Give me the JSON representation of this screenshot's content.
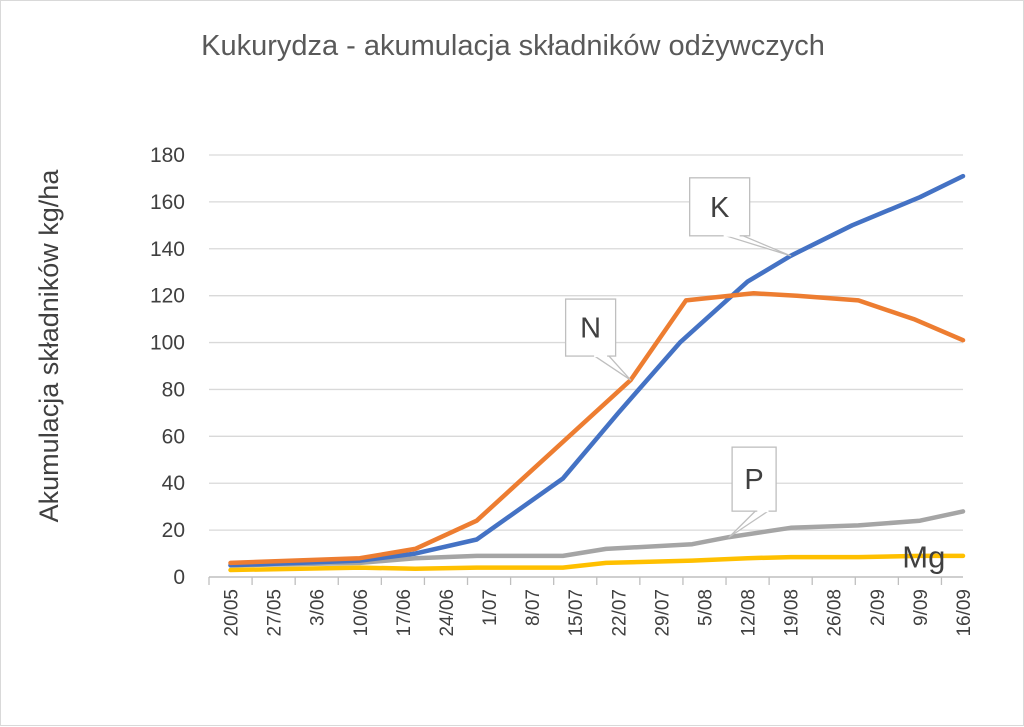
{
  "chart_data": {
    "type": "line",
    "title": "Kukurydza - akumulacja składników odżywczych",
    "ylabel": "Akumulacja składników kg/ha",
    "xlabel": "",
    "ylim": [
      0,
      180
    ],
    "yticks": [
      0,
      20,
      40,
      60,
      80,
      100,
      120,
      140,
      160,
      180
    ],
    "x_ticks": [
      "20/05",
      "27/05",
      "3/06",
      "10/06",
      "17/06",
      "24/06",
      "1/07",
      "8/07",
      "15/07",
      "22/07",
      "29/07",
      "5/08",
      "12/08",
      "19/08",
      "26/08",
      "2/09",
      "9/09",
      "16/09"
    ],
    "grid": "horizontal",
    "legend": "none",
    "series": [
      {
        "name": "N",
        "color": "#ED7D31",
        "points": [
          [
            "20/05",
            6
          ],
          [
            "10/06",
            8
          ],
          [
            "19/06",
            12
          ],
          [
            "29/06",
            24
          ],
          [
            "24/07",
            84
          ],
          [
            "2/08",
            118
          ],
          [
            "13/08",
            121
          ],
          [
            "20/08",
            120
          ],
          [
            "30/08",
            118
          ],
          [
            "8/09",
            110
          ],
          [
            "16/09",
            101
          ]
        ]
      },
      {
        "name": "K",
        "color": "#4472C4",
        "points": [
          [
            "20/05",
            5
          ],
          [
            "10/06",
            7
          ],
          [
            "19/06",
            10
          ],
          [
            "29/06",
            16
          ],
          [
            "13/07",
            42
          ],
          [
            "22/07",
            70
          ],
          [
            "1/08",
            100
          ],
          [
            "12/08",
            126
          ],
          [
            "19/08",
            137
          ],
          [
            "29/08",
            150
          ],
          [
            "9/09",
            162
          ],
          [
            "16/09",
            171
          ]
        ]
      },
      {
        "name": "P",
        "color": "#A5A5A5",
        "points": [
          [
            "20/05",
            5
          ],
          [
            "10/06",
            6
          ],
          [
            "19/06",
            8
          ],
          [
            "29/06",
            9
          ],
          [
            "13/07",
            9
          ],
          [
            "20/07",
            12
          ],
          [
            "3/08",
            14
          ],
          [
            "9/08",
            17
          ],
          [
            "19/08",
            21
          ],
          [
            "30/08",
            22
          ],
          [
            "9/09",
            24
          ],
          [
            "16/09",
            28
          ]
        ]
      },
      {
        "name": "Mg",
        "color": "#FFC000",
        "points": [
          [
            "20/05",
            3
          ],
          [
            "10/06",
            4
          ],
          [
            "19/06",
            3.5
          ],
          [
            "29/06",
            4
          ],
          [
            "13/07",
            4
          ],
          [
            "20/07",
            6
          ],
          [
            "3/08",
            7
          ],
          [
            "12/08",
            8
          ],
          [
            "19/08",
            8.5
          ],
          [
            "30/08",
            8.5
          ],
          [
            "9/09",
            9
          ],
          [
            "16/09",
            9
          ]
        ]
      }
    ],
    "annotations": [
      {
        "text": "K",
        "series": "K",
        "at": "19/08"
      },
      {
        "text": "N",
        "series": "N",
        "at": "24/07"
      },
      {
        "text": "P",
        "series": "P",
        "at": "9/08"
      },
      {
        "text": "Mg",
        "series": "Mg",
        "at": "2/09"
      }
    ]
  }
}
